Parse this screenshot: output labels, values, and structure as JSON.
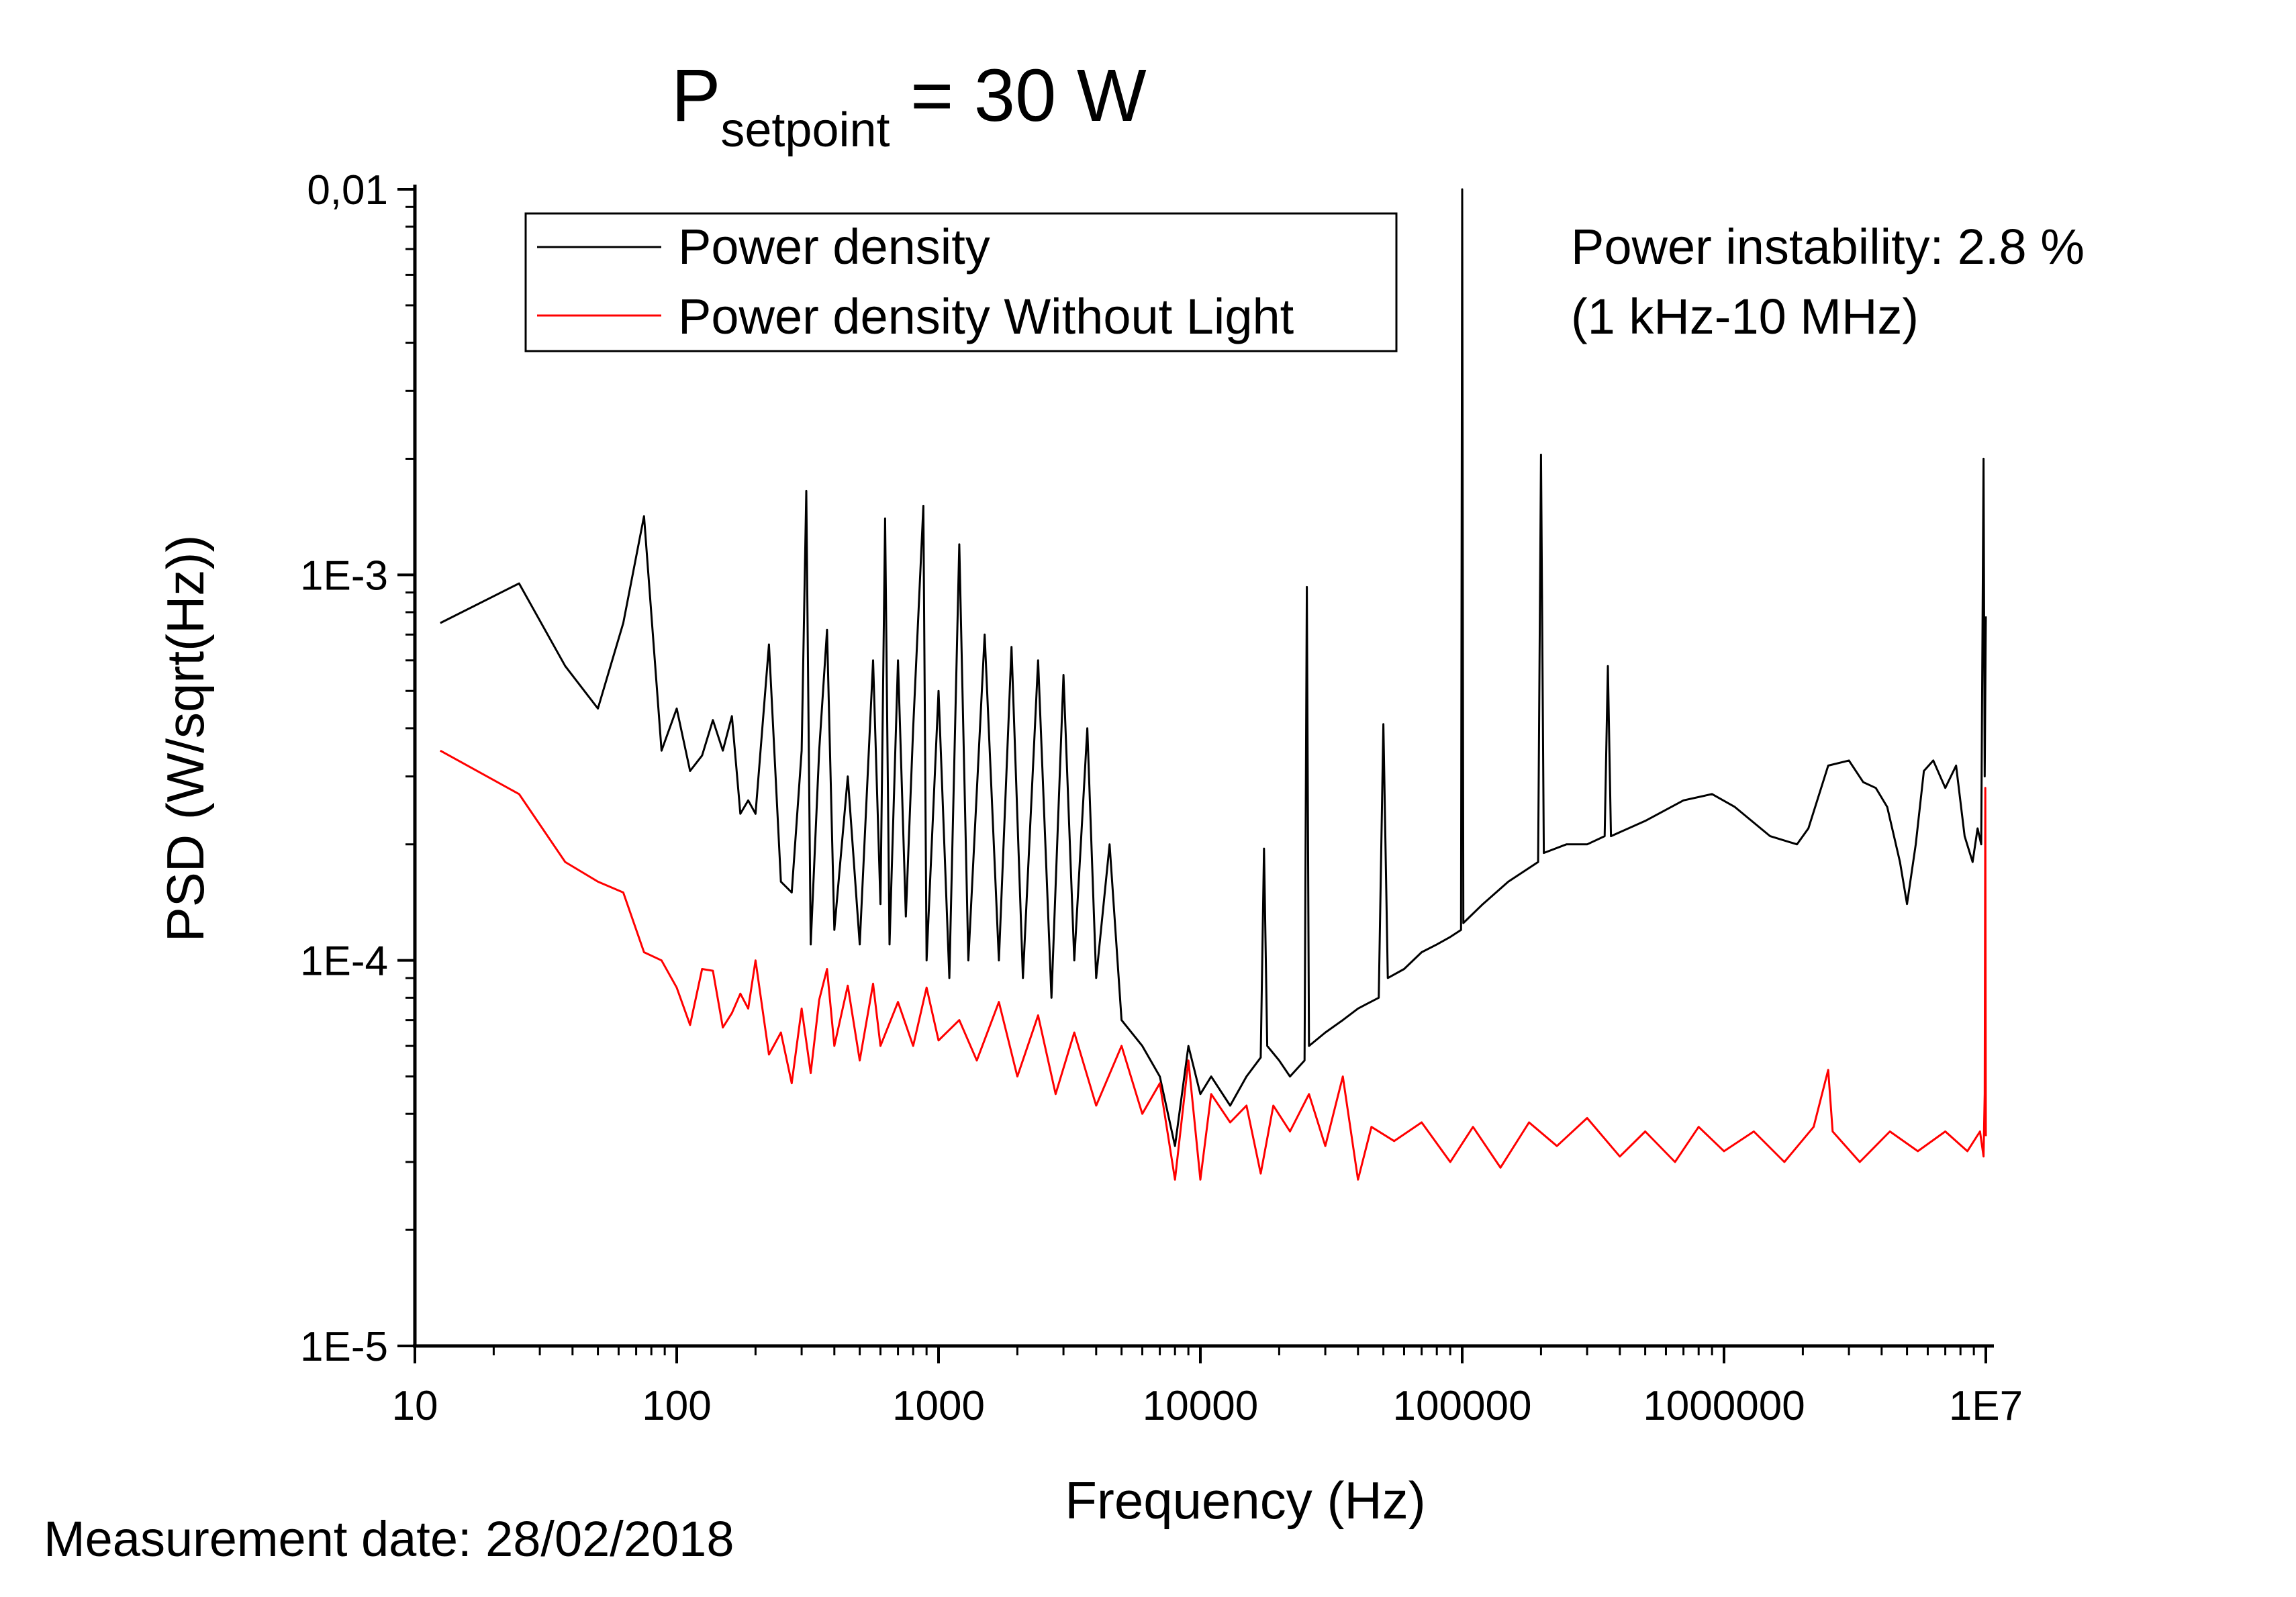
{
  "title": {
    "main": "P",
    "subscript": "setpoint",
    "suffix": " = 30 W"
  },
  "footer": {
    "measurement_date": "Measurement date: 28/02/2018"
  },
  "annotation": {
    "line1": "Power instability: 2.8 %",
    "line2": "(1 kHz-10 MHz)"
  },
  "chart_data": {
    "type": "line",
    "xlabel": "Frequency (Hz)",
    "ylabel": "PSD (W/sqrt(Hz))",
    "x_scale": "log",
    "y_scale": "log",
    "xlim": [
      10,
      10000000
    ],
    "ylim": [
      1e-05,
      0.01
    ],
    "x_ticks": [
      {
        "value": 10,
        "label": "10"
      },
      {
        "value": 100,
        "label": "100"
      },
      {
        "value": 1000,
        "label": "1000"
      },
      {
        "value": 10000,
        "label": "10000"
      },
      {
        "value": 100000,
        "label": "100000"
      },
      {
        "value": 1000000,
        "label": "1000000"
      },
      {
        "value": 10000000,
        "label": "1E7"
      }
    ],
    "y_ticks": [
      {
        "value": 1e-05,
        "label": "1E-5"
      },
      {
        "value": 0.0001,
        "label": "1E-4"
      },
      {
        "value": 0.001,
        "label": "1E-3"
      },
      {
        "value": 0.01,
        "label": "0,01"
      }
    ],
    "grid": false,
    "legend_position": "top-left",
    "series": [
      {
        "name": "Power density",
        "color": "#000000",
        "points": [
          [
            12.5,
            0.00075
          ],
          [
            25,
            0.00095
          ],
          [
            37.5,
            0.00058
          ],
          [
            50,
            0.00045
          ],
          [
            62.5,
            0.00075
          ],
          [
            75,
            0.00142
          ],
          [
            87.5,
            0.00035
          ],
          [
            100,
            0.00045
          ],
          [
            112.5,
            0.00031
          ],
          [
            125,
            0.00034
          ],
          [
            137.5,
            0.00042
          ],
          [
            150,
            0.00035
          ],
          [
            162.5,
            0.00043
          ],
          [
            175,
            0.00024
          ],
          [
            187.5,
            0.00026
          ],
          [
            200,
            0.00024
          ],
          [
            225,
            0.00066
          ],
          [
            250,
            0.00016
          ],
          [
            275,
            0.00015
          ],
          [
            300,
            0.00035
          ],
          [
            312.5,
            0.00165
          ],
          [
            325,
            0.00011
          ],
          [
            350,
            0.00035
          ],
          [
            375,
            0.00072
          ],
          [
            400,
            0.00012
          ],
          [
            450,
            0.0003
          ],
          [
            500,
            0.00011
          ],
          [
            562.5,
            0.0006
          ],
          [
            600,
            0.00014
          ],
          [
            625,
            0.0014
          ],
          [
            650,
            0.00011
          ],
          [
            700,
            0.0006
          ],
          [
            750,
            0.00013
          ],
          [
            800,
            0.0004
          ],
          [
            875,
            0.00151
          ],
          [
            900,
            0.0001
          ],
          [
            1000,
            0.0005
          ],
          [
            1100,
            9e-05
          ],
          [
            1200,
            0.0012
          ],
          [
            1300,
            0.0001
          ],
          [
            1500,
            0.0007
          ],
          [
            1700,
            0.0001
          ],
          [
            1900,
            0.00065
          ],
          [
            2100,
            9e-05
          ],
          [
            2400,
            0.0006
          ],
          [
            2700,
            8e-05
          ],
          [
            3000,
            0.00055
          ],
          [
            3300,
            0.0001
          ],
          [
            3700,
            0.0004
          ],
          [
            4000,
            9e-05
          ],
          [
            4500,
            0.0002
          ],
          [
            5000,
            7e-05
          ],
          [
            6000,
            6e-05
          ],
          [
            7000,
            5e-05
          ],
          [
            8000,
            3.3e-05
          ],
          [
            9000,
            6e-05
          ],
          [
            10000,
            4.5e-05
          ],
          [
            11000,
            5e-05
          ],
          [
            13000,
            4.2e-05
          ],
          [
            15000,
            5e-05
          ],
          [
            17000,
            5.6e-05
          ],
          [
            17500,
            0.000195
          ],
          [
            18000,
            6e-05
          ],
          [
            20000,
            5.5e-05
          ],
          [
            22000,
            5e-05
          ],
          [
            25000,
            5.5e-05
          ],
          [
            25500,
            0.00093
          ],
          [
            26000,
            6e-05
          ],
          [
            30000,
            6.5e-05
          ],
          [
            35000,
            7e-05
          ],
          [
            40000,
            7.5e-05
          ],
          [
            48000,
            8e-05
          ],
          [
            50000,
            0.00041
          ],
          [
            52000,
            9e-05
          ],
          [
            60000,
            9.5e-05
          ],
          [
            70000,
            0.000105
          ],
          [
            80000,
            0.00011
          ],
          [
            90000,
            0.000115
          ],
          [
            99000,
            0.00012
          ],
          [
            100000,
            0.01
          ],
          [
            101000,
            0.000125
          ],
          [
            120000,
            0.00014
          ],
          [
            150000,
            0.00016
          ],
          [
            195000,
            0.00018
          ],
          [
            200000,
            0.00205
          ],
          [
            205000,
            0.00019
          ],
          [
            250000,
            0.0002
          ],
          [
            300000,
            0.0002
          ],
          [
            350000,
            0.00021
          ],
          [
            360000,
            0.00058
          ],
          [
            370000,
            0.00021
          ],
          [
            500000,
            0.00023
          ],
          [
            700000,
            0.00026
          ],
          [
            900000,
            0.00027
          ],
          [
            1100000,
            0.00025
          ],
          [
            1500000,
            0.00021
          ],
          [
            1900000,
            0.0002
          ],
          [
            2100000,
            0.00022
          ],
          [
            2500000,
            0.00032
          ],
          [
            3000000,
            0.00033
          ],
          [
            3400000,
            0.00029
          ],
          [
            3800000,
            0.00028
          ],
          [
            4200000,
            0.00025
          ],
          [
            4700000,
            0.00018
          ],
          [
            5000000,
            0.00014
          ],
          [
            5400000,
            0.0002
          ],
          [
            5800000,
            0.00031
          ],
          [
            6300000,
            0.00033
          ],
          [
            7000000,
            0.00028
          ],
          [
            7700000,
            0.00032
          ],
          [
            8300000,
            0.00021
          ],
          [
            8900000,
            0.00018
          ],
          [
            9300000,
            0.00022
          ],
          [
            9600000,
            0.0002
          ],
          [
            9800000,
            0.002
          ],
          [
            9900000,
            0.0003
          ],
          [
            10000000,
            0.00078
          ]
        ]
      },
      {
        "name": "Power density Without Light",
        "color": "#ff0000",
        "points": [
          [
            12.5,
            0.00035
          ],
          [
            25,
            0.00027
          ],
          [
            37.5,
            0.00018
          ],
          [
            50,
            0.00016
          ],
          [
            62.5,
            0.00015
          ],
          [
            75,
            0.000105
          ],
          [
            87.5,
            0.0001
          ],
          [
            100,
            8.5e-05
          ],
          [
            112.5,
            6.8e-05
          ],
          [
            125,
            9.5e-05
          ],
          [
            137.5,
            9.4e-05
          ],
          [
            150,
            6.7e-05
          ],
          [
            162.5,
            7.3e-05
          ],
          [
            175,
            8.2e-05
          ],
          [
            187.5,
            7.5e-05
          ],
          [
            200,
            0.0001
          ],
          [
            225,
            5.7e-05
          ],
          [
            250,
            6.5e-05
          ],
          [
            275,
            4.8e-05
          ],
          [
            300,
            7.5e-05
          ],
          [
            325,
            5.1e-05
          ],
          [
            350,
            7.9e-05
          ],
          [
            375,
            9.5e-05
          ],
          [
            400,
            6e-05
          ],
          [
            450,
            8.6e-05
          ],
          [
            500,
            5.5e-05
          ],
          [
            562.5,
            8.7e-05
          ],
          [
            600,
            6e-05
          ],
          [
            700,
            7.8e-05
          ],
          [
            800,
            6e-05
          ],
          [
            900,
            8.5e-05
          ],
          [
            1000,
            6.2e-05
          ],
          [
            1200,
            7e-05
          ],
          [
            1400,
            5.5e-05
          ],
          [
            1700,
            7.8e-05
          ],
          [
            2000,
            5e-05
          ],
          [
            2400,
            7.2e-05
          ],
          [
            2800,
            4.5e-05
          ],
          [
            3300,
            6.5e-05
          ],
          [
            4000,
            4.2e-05
          ],
          [
            5000,
            6e-05
          ],
          [
            6000,
            4e-05
          ],
          [
            7000,
            4.8e-05
          ],
          [
            8000,
            2.7e-05
          ],
          [
            9000,
            5.5e-05
          ],
          [
            10000,
            2.7e-05
          ],
          [
            11000,
            4.5e-05
          ],
          [
            13000,
            3.8e-05
          ],
          [
            15000,
            4.2e-05
          ],
          [
            17000,
            2.8e-05
          ],
          [
            19000,
            4.2e-05
          ],
          [
            22000,
            3.6e-05
          ],
          [
            26000,
            4.5e-05
          ],
          [
            30000,
            3.3e-05
          ],
          [
            35000,
            5e-05
          ],
          [
            40000,
            2.7e-05
          ],
          [
            45000,
            3.7e-05
          ],
          [
            55000,
            3.4e-05
          ],
          [
            70000,
            3.8e-05
          ],
          [
            90000,
            3e-05
          ],
          [
            110000,
            3.7e-05
          ],
          [
            140000,
            2.9e-05
          ],
          [
            180000,
            3.8e-05
          ],
          [
            230000,
            3.3e-05
          ],
          [
            300000,
            3.9e-05
          ],
          [
            400000,
            3.1e-05
          ],
          [
            500000,
            3.6e-05
          ],
          [
            650000,
            3e-05
          ],
          [
            800000,
            3.7e-05
          ],
          [
            1000000,
            3.2e-05
          ],
          [
            1300000,
            3.6e-05
          ],
          [
            1700000,
            3e-05
          ],
          [
            2200000,
            3.7e-05
          ],
          [
            2500000,
            5.2e-05
          ],
          [
            2600000,
            3.6e-05
          ],
          [
            3300000,
            3e-05
          ],
          [
            4300000,
            3.6e-05
          ],
          [
            5500000,
            3.2e-05
          ],
          [
            7000000,
            3.6e-05
          ],
          [
            8500000,
            3.2e-05
          ],
          [
            9500000,
            3.6e-05
          ],
          [
            9800000,
            3.1e-05
          ],
          [
            9900000,
            4.5e-05
          ],
          [
            9950000,
            0.00028
          ],
          [
            10000000,
            3.5e-05
          ]
        ]
      }
    ]
  }
}
